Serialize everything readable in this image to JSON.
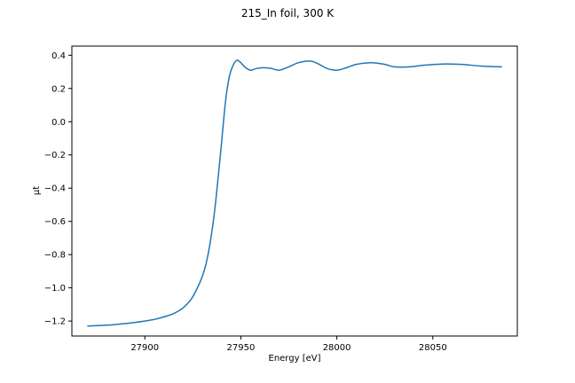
{
  "chart_data": {
    "type": "line",
    "title": "215_In foil, 300 K",
    "xlabel": "Energy [eV]",
    "ylabel": "μt",
    "xlim": [
      27862,
      28094
    ],
    "ylim": [
      -1.29,
      0.455
    ],
    "xticks": [
      27900,
      27950,
      28000,
      28050
    ],
    "yticks": [
      -1.2,
      -1.0,
      -0.8,
      -0.6,
      -0.4,
      -0.2,
      0.0,
      0.2,
      0.4
    ],
    "xtick_labels": [
      "27900",
      "27950",
      "28000",
      "28050"
    ],
    "ytick_labels": [
      "−1.2",
      "−1.0",
      "−0.8",
      "−0.6",
      "−0.4",
      "−0.2",
      "0.0",
      "0.2",
      "0.4"
    ],
    "grid": false,
    "series": [
      {
        "color": "#1f77b4",
        "x": [
          27870,
          27880,
          27890,
          27900,
          27905,
          27910,
          27915,
          27920,
          27924,
          27927,
          27930,
          27932,
          27934,
          27936,
          27938,
          27940,
          27942,
          27944,
          27946,
          27948,
          27950,
          27952,
          27955,
          27958,
          27962,
          27966,
          27970,
          27975,
          27980,
          27986,
          27990,
          27995,
          28000,
          28005,
          28010,
          28018,
          28025,
          28030,
          28038,
          28045,
          28055,
          28065,
          28075,
          28086
        ],
        "y": [
          -1.23,
          -1.225,
          -1.215,
          -1.2,
          -1.19,
          -1.175,
          -1.155,
          -1.12,
          -1.07,
          -1.01,
          -0.93,
          -0.85,
          -0.73,
          -0.57,
          -0.36,
          -0.12,
          0.12,
          0.27,
          0.34,
          0.37,
          0.355,
          0.33,
          0.31,
          0.32,
          0.325,
          0.32,
          0.31,
          0.33,
          0.355,
          0.365,
          0.35,
          0.32,
          0.31,
          0.325,
          0.345,
          0.355,
          0.345,
          0.33,
          0.33,
          0.34,
          0.347,
          0.345,
          0.335,
          0.33
        ]
      }
    ]
  }
}
